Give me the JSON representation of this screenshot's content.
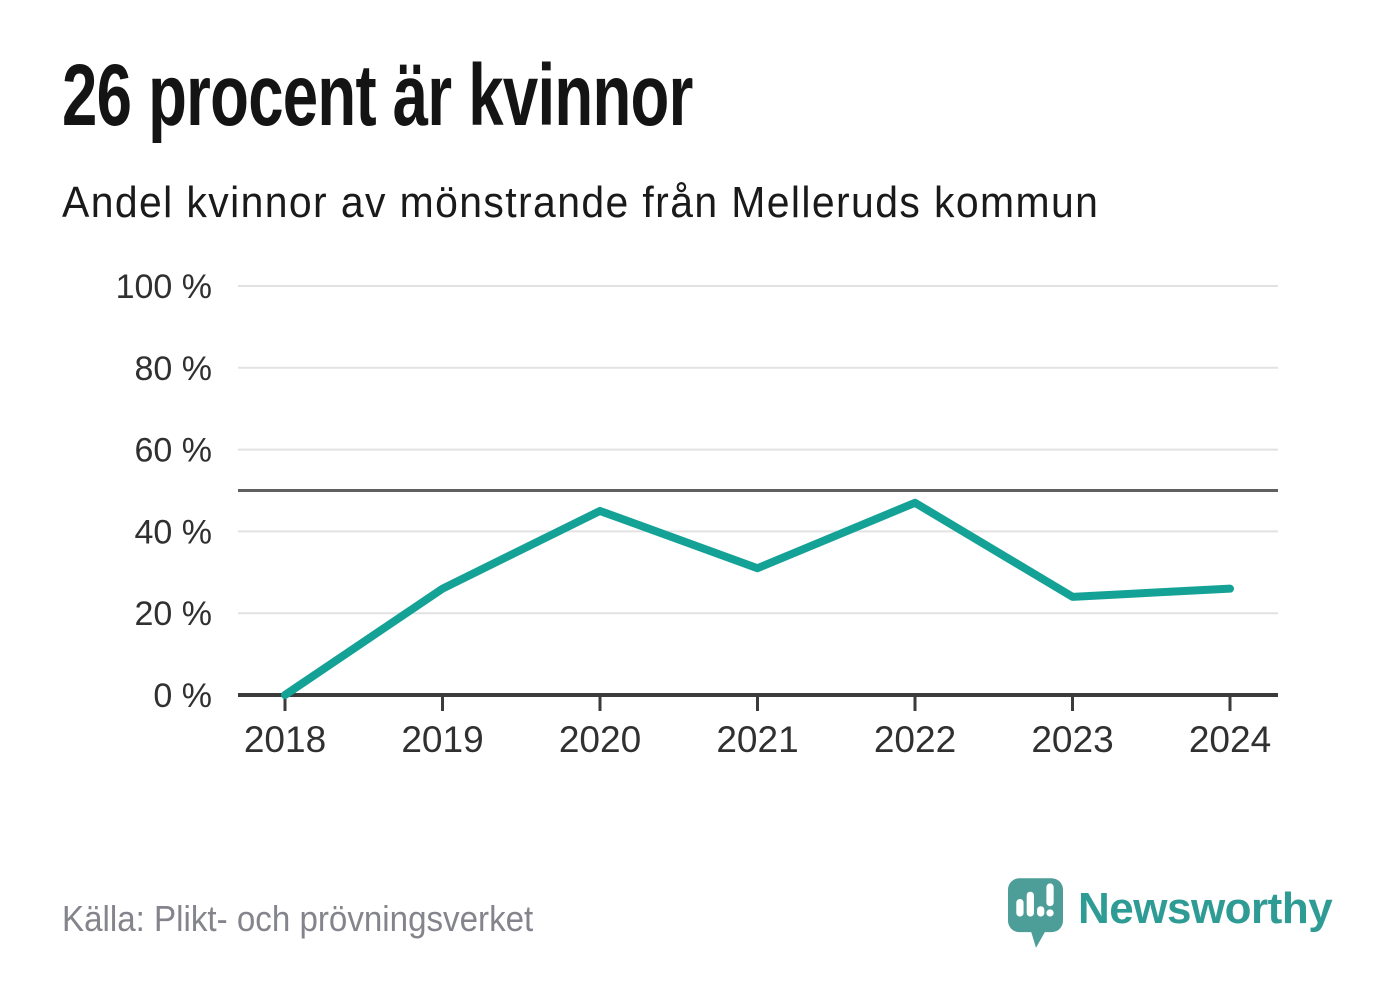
{
  "header": {
    "title": "26 procent är kvinnor",
    "subtitle": "Andel kvinnor av mönstrande från Melleruds kommun"
  },
  "chart_data": {
    "type": "line",
    "title": "26 procent är kvinnor",
    "subtitle": "Andel kvinnor av mönstrande från Melleruds kommun",
    "categories": [
      "2018",
      "2019",
      "2020",
      "2021",
      "2022",
      "2023",
      "2024"
    ],
    "values": [
      0,
      26,
      45,
      31,
      47,
      24,
      26
    ],
    "unit": "%",
    "xlabel": "",
    "ylabel": "",
    "ylim": [
      0,
      100
    ],
    "yticks": [
      100,
      80,
      60,
      40,
      20,
      0
    ],
    "ytick_labels": [
      "100 %",
      "80 %",
      "60 %",
      "40 %",
      "20 %",
      "0 %"
    ],
    "reference_line": 50,
    "grid": true,
    "legend": "none"
  },
  "footer": {
    "source": "Källa: Plikt- och prövningsverket",
    "logo_text": "Newsworthy"
  },
  "colors": {
    "accent": "#15a296",
    "grid": "#e2e2e2",
    "reference": "#606060",
    "axis": "#3b3b3b",
    "axis_text": "#303030",
    "title_text": "#141414",
    "muted_text": "#84848c",
    "logo_mark": "#4d9d98",
    "logo_text": "#2e9c94"
  }
}
